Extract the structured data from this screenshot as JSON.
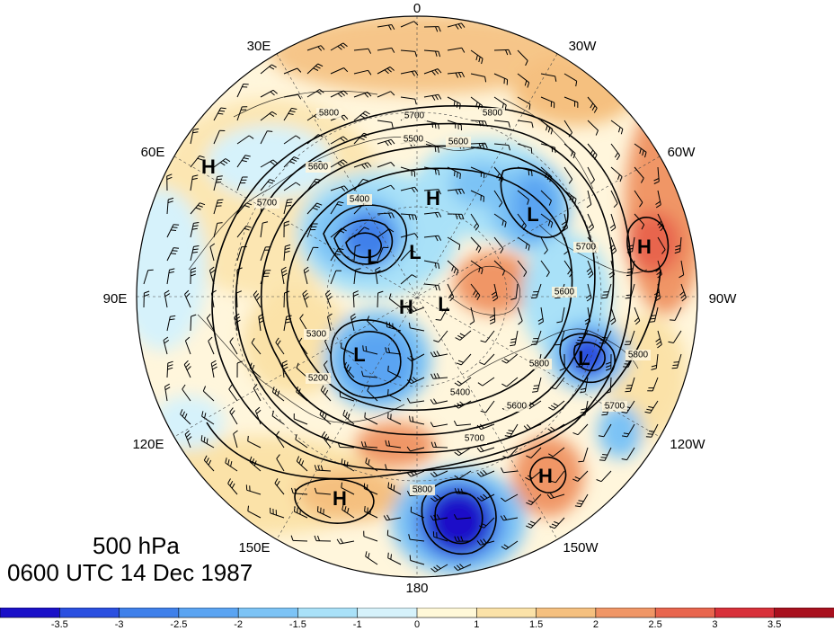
{
  "title": {
    "level": "500 hPa",
    "time": "0600 UTC 14 Dec 1987"
  },
  "map": {
    "projection": "north-polar-stereographic",
    "longitude_labels": [
      {
        "text": "0",
        "lon": 0
      },
      {
        "text": "30W",
        "lon": -30
      },
      {
        "text": "60W",
        "lon": -60
      },
      {
        "text": "90W",
        "lon": -90
      },
      {
        "text": "120W",
        "lon": -120
      },
      {
        "text": "150W",
        "lon": -150
      },
      {
        "text": "180",
        "lon": 180
      },
      {
        "text": "150E",
        "lon": 150
      },
      {
        "text": "120E",
        "lon": 120
      },
      {
        "text": "90E",
        "lon": 90
      },
      {
        "text": "60E",
        "lon": 60
      },
      {
        "text": "30E",
        "lon": 30
      }
    ],
    "pressure_centers": [
      {
        "label": "H",
        "type": "high"
      },
      {
        "label": "H",
        "type": "high"
      },
      {
        "label": "H",
        "type": "high"
      },
      {
        "label": "H",
        "type": "high"
      },
      {
        "label": "H",
        "type": "high"
      },
      {
        "label": "H",
        "type": "high"
      },
      {
        "label": "L",
        "type": "low"
      },
      {
        "label": "L",
        "type": "low"
      },
      {
        "label": "L",
        "type": "low"
      },
      {
        "label": "L",
        "type": "low"
      },
      {
        "label": "L",
        "type": "low"
      },
      {
        "label": "L",
        "type": "low"
      }
    ],
    "contour_labels": [
      "5800",
      "5700",
      "5500",
      "5600",
      "5800",
      "5400",
      "5600",
      "5700",
      "5300",
      "5200",
      "5400",
      "5700",
      "5600",
      "5800",
      "5600",
      "5700",
      "5800",
      "5700",
      "5800"
    ],
    "contour_levels": [
      5200,
      5300,
      5400,
      5500,
      5600,
      5700,
      5800
    ]
  },
  "colorbar": {
    "ticks": [
      "-3.5",
      "-3",
      "-2.5",
      "-2",
      "-1.5",
      "-1",
      "0",
      "1",
      "1.5",
      "2",
      "2.5",
      "3",
      "3.5"
    ],
    "colors": [
      "#1a10c8",
      "#2a4fe0",
      "#3f80ea",
      "#5aa4f2",
      "#7cc3f5",
      "#a9e1f8",
      "#d6f2fb",
      "#fff8d8",
      "#fbe2a8",
      "#f5c07f",
      "#f09666",
      "#e8654e",
      "#d8303a",
      "#a8101e"
    ]
  }
}
